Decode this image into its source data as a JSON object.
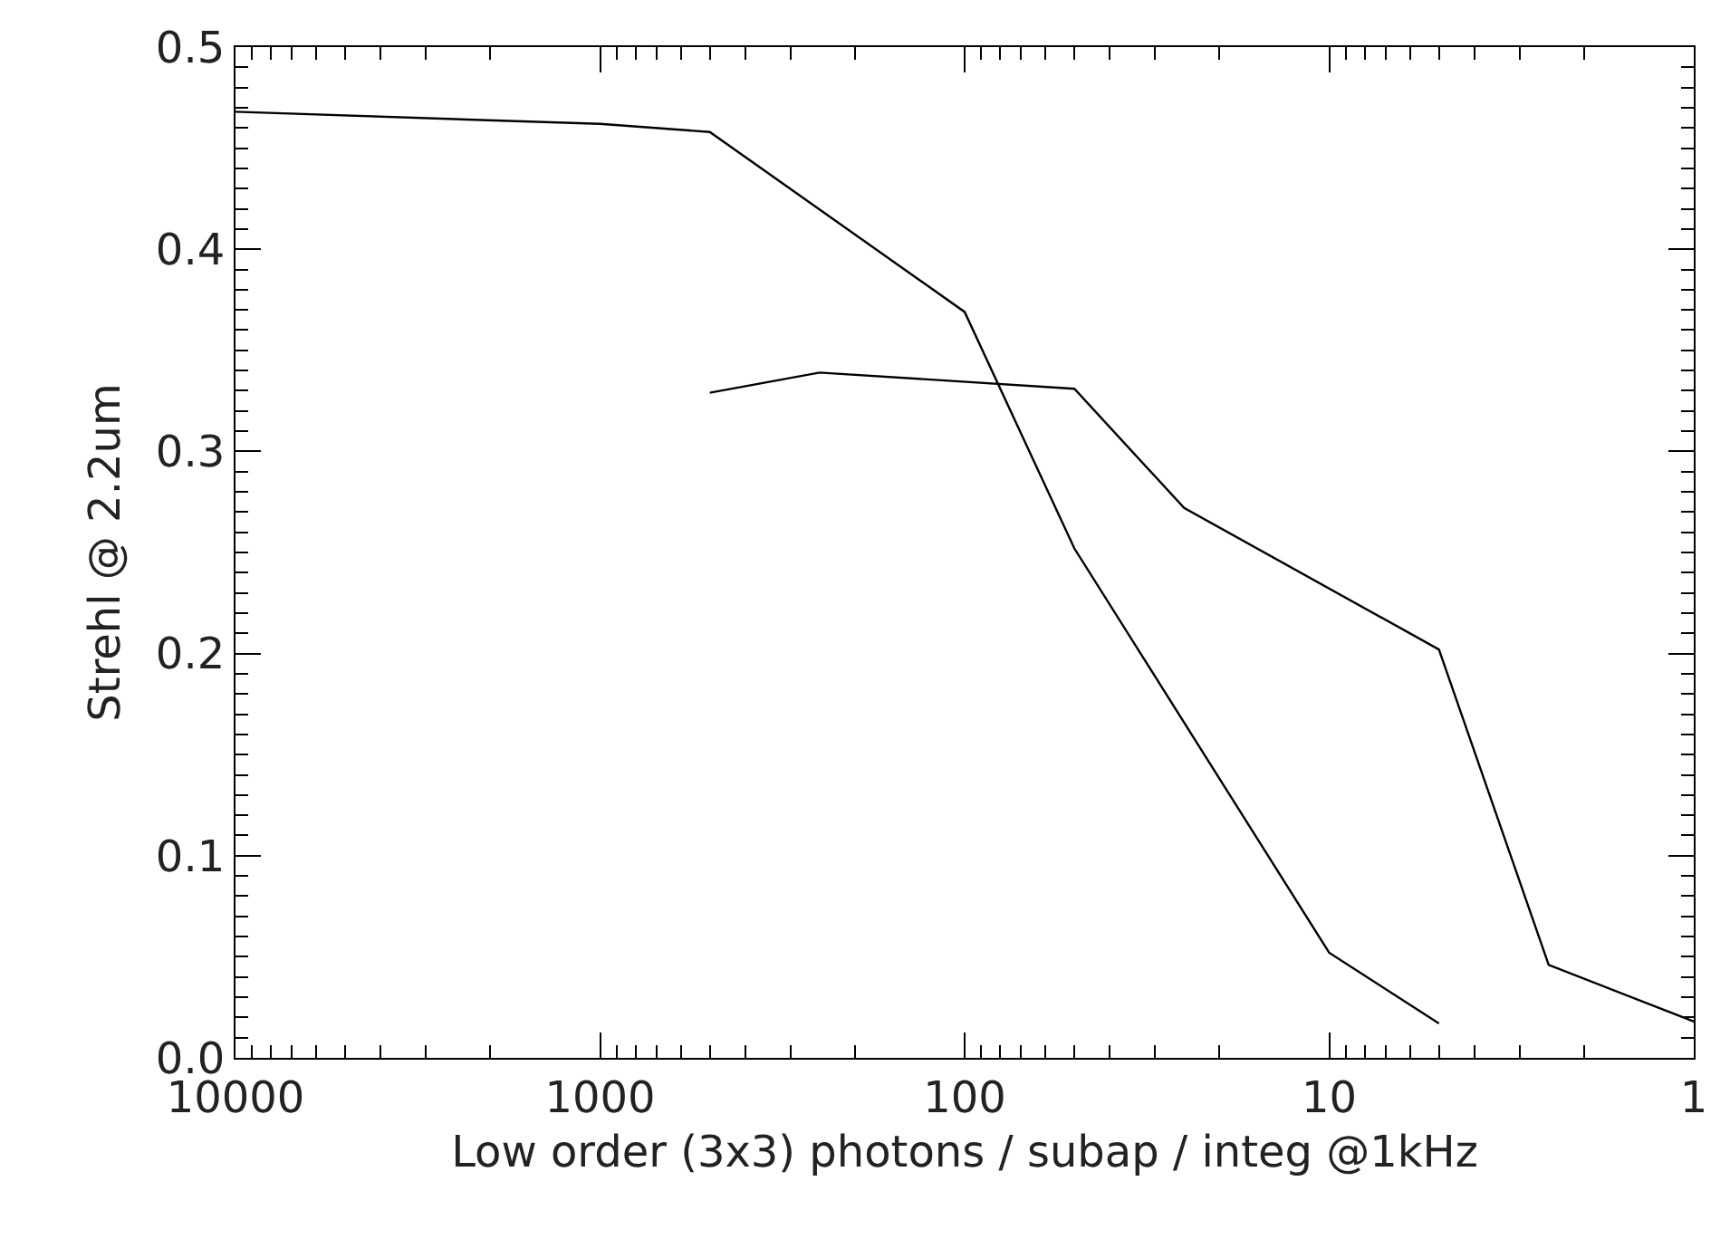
{
  "chart_data": {
    "type": "line",
    "xlabel": "Low order (3x3) photons / subap / integ @1kHz",
    "ylabel": "Strehl @ 2.2um",
    "log": "x",
    "xlim": [
      10000,
      1
    ],
    "xticks": [
      10000,
      1000,
      100,
      10,
      1
    ],
    "ylim": [
      0.0,
      0.5
    ],
    "yticks": [
      {
        "value": 0.0,
        "label": "0.0"
      },
      0.1,
      0.2,
      0.3,
      0.4,
      0.5
    ],
    "marker": "none",
    "line_style": "solid",
    "series": [
      {
        "color": "#000000",
        "x": [
          10000,
          1000,
          500,
          100,
          50,
          10,
          5
        ],
        "values": [
          0.468,
          0.462,
          0.458,
          0.369,
          0.252,
          0.052,
          0.017
        ]
      },
      {
        "color": "#000000",
        "x": [
          500,
          250,
          50,
          25,
          5,
          2.5,
          1
        ],
        "values": [
          0.329,
          0.339,
          0.331,
          0.272,
          0.202,
          0.046,
          0.018
        ]
      }
    ]
  }
}
